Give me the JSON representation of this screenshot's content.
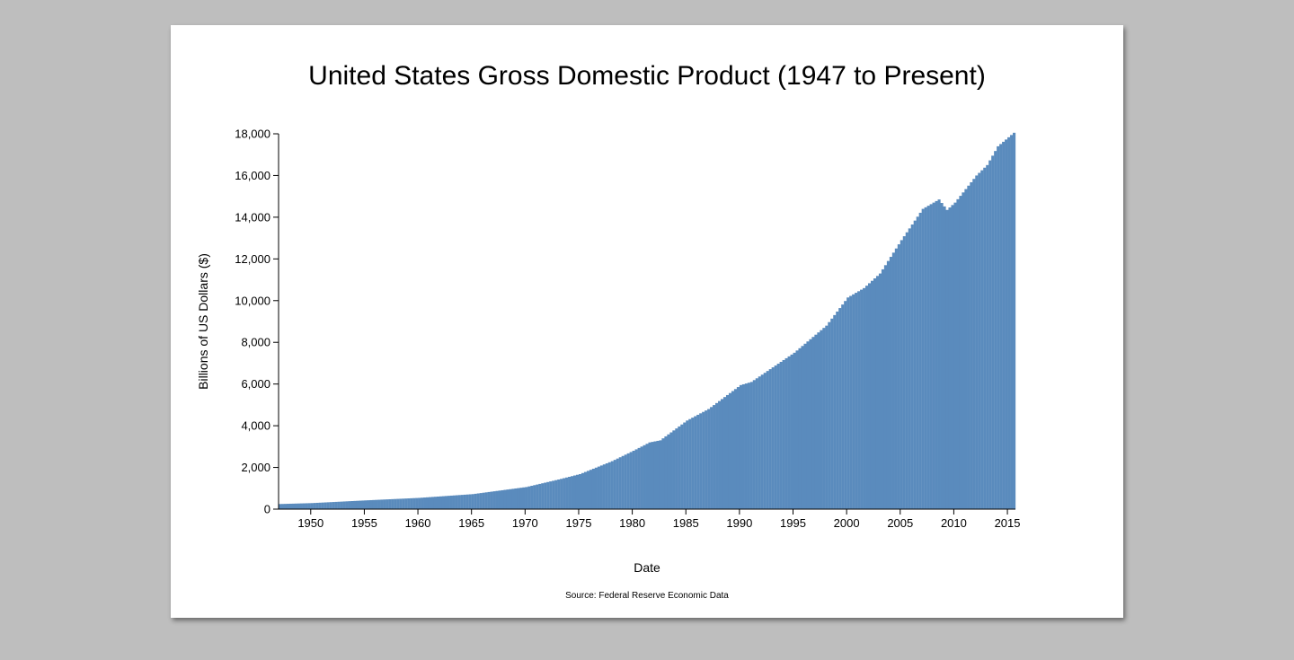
{
  "page": {
    "title": "United States Gross Domestic Product (1947 to Present)",
    "source": "Source: Federal Reserve Economic Data"
  },
  "chart_data": {
    "type": "bar",
    "title": "United States Gross Domestic Product (1947 to Present)",
    "xlabel": "Date",
    "ylabel": "Billions of US Dollars ($)",
    "bar_color": "#5a8bbd",
    "background": "#bebebe",
    "xlim": [
      1947.0,
      2015.75
    ],
    "ylim": [
      0,
      18000
    ],
    "x_ticks": [
      1950,
      1955,
      1960,
      1965,
      1970,
      1975,
      1980,
      1985,
      1990,
      1995,
      2000,
      2005,
      2010,
      2015
    ],
    "y_ticks": [
      0,
      2000,
      4000,
      6000,
      8000,
      10000,
      12000,
      14000,
      16000,
      18000
    ],
    "y_tick_labels": [
      "0",
      "2,000",
      "4,000",
      "6,000",
      "8,000",
      "10,000",
      "12,000",
      "14,000",
      "16,000",
      "18,000"
    ],
    "grid": false,
    "frequency": "quarterly",
    "anchor_points": [
      {
        "year": 1947,
        "value": 245
      },
      {
        "year": 1950,
        "value": 290
      },
      {
        "year": 1955,
        "value": 420
      },
      {
        "year": 1960,
        "value": 540
      },
      {
        "year": 1965,
        "value": 720
      },
      {
        "year": 1970,
        "value": 1060
      },
      {
        "year": 1973,
        "value": 1420
      },
      {
        "year": 1975,
        "value": 1680
      },
      {
        "year": 1978,
        "value": 2300
      },
      {
        "year": 1980,
        "value": 2800
      },
      {
        "year": 1981.5,
        "value": 3200
      },
      {
        "year": 1982.5,
        "value": 3300
      },
      {
        "year": 1985,
        "value": 4250
      },
      {
        "year": 1987,
        "value": 4800
      },
      {
        "year": 1990,
        "value": 5950
      },
      {
        "year": 1991,
        "value": 6100
      },
      {
        "year": 1995,
        "value": 7500
      },
      {
        "year": 1998,
        "value": 8800
      },
      {
        "year": 2000,
        "value": 10150
      },
      {
        "year": 2001.5,
        "value": 10600
      },
      {
        "year": 2003,
        "value": 11300
      },
      {
        "year": 2005,
        "value": 12900
      },
      {
        "year": 2007,
        "value": 14400
      },
      {
        "year": 2008.5,
        "value": 14850
      },
      {
        "year": 2009.25,
        "value": 14350
      },
      {
        "year": 2010,
        "value": 14700
      },
      {
        "year": 2012,
        "value": 16000
      },
      {
        "year": 2013,
        "value": 16500
      },
      {
        "year": 2014,
        "value": 17400
      },
      {
        "year": 2015.5,
        "value": 18050
      }
    ]
  }
}
